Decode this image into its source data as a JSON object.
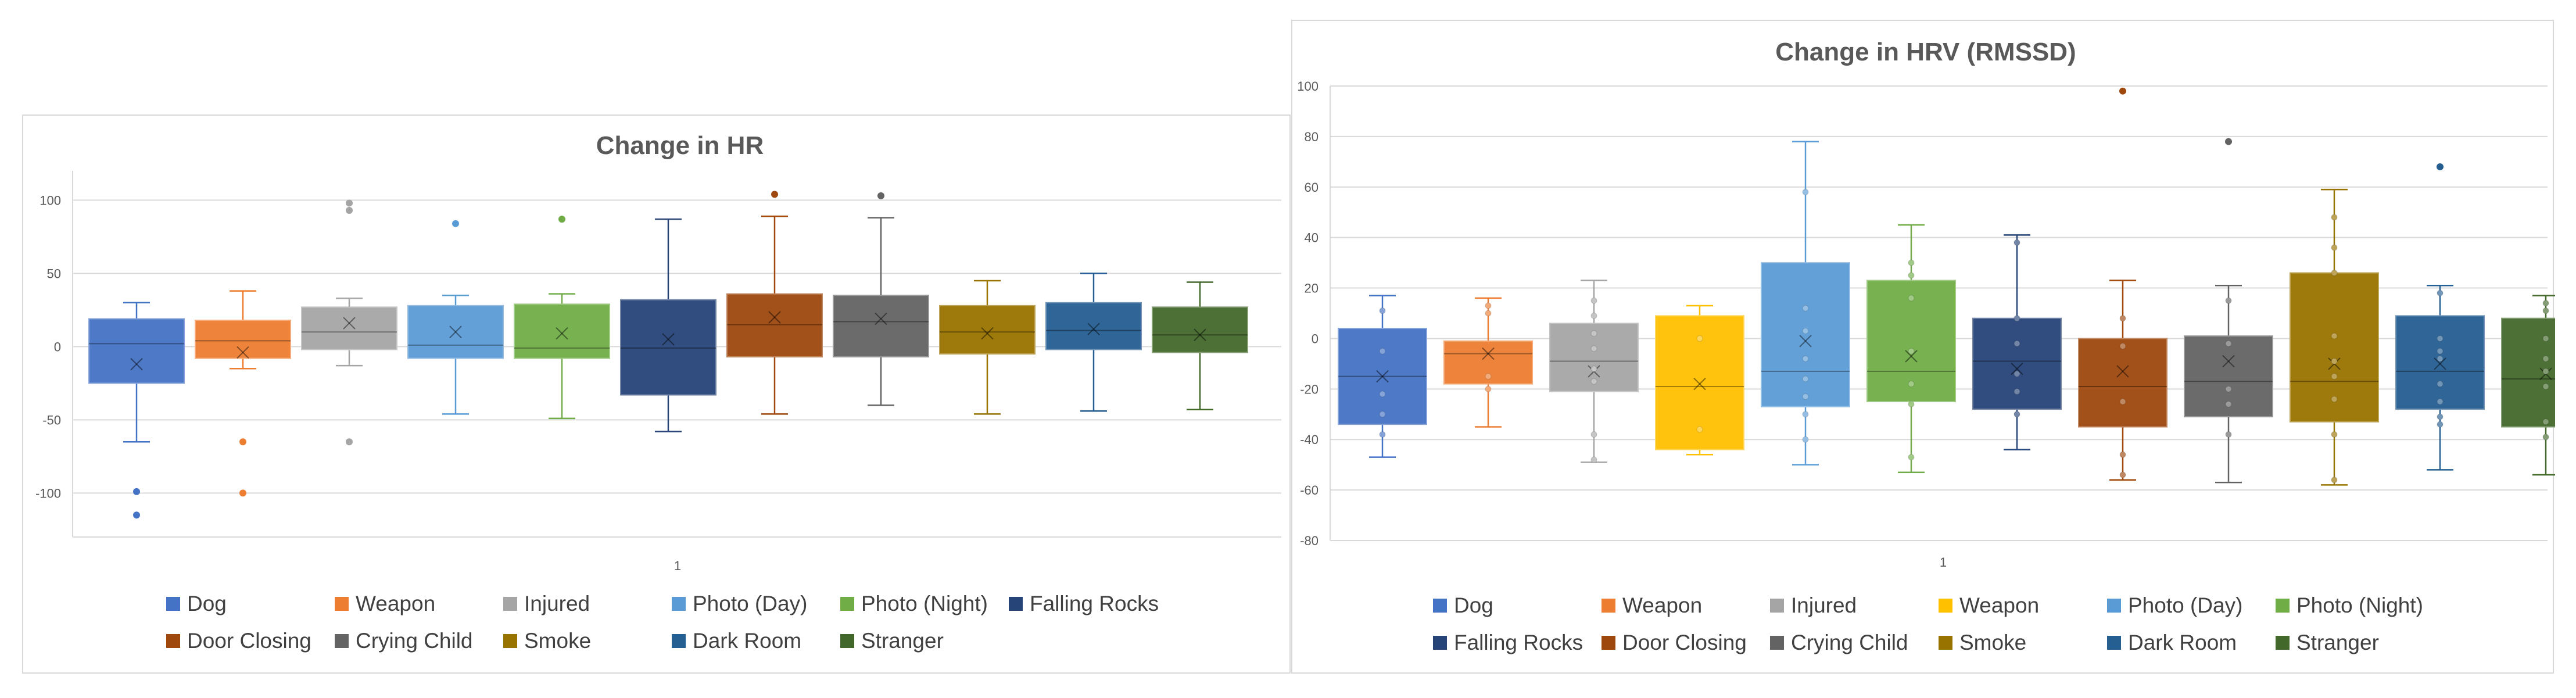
{
  "chart_data": [
    {
      "type": "box",
      "title": "Change in HR",
      "x_category": "1",
      "ylim": [
        -130,
        120
      ],
      "yticks": [
        -100,
        -50,
        0,
        50,
        100
      ],
      "grid": true,
      "legend_position": "bottom",
      "series": [
        {
          "name": "Dog",
          "color": "#4472C4",
          "min": -65,
          "q1": -25,
          "median": 2,
          "q3": 19,
          "max": 30,
          "mean": -12,
          "outliers": [
            -99,
            -115
          ]
        },
        {
          "name": "Weapon",
          "color": "#ED7D31",
          "min": -15,
          "q1": -8,
          "median": 4,
          "q3": 18,
          "max": 38,
          "mean": -4,
          "outliers": [
            -65,
            -100
          ]
        },
        {
          "name": "Injured",
          "color": "#A5A5A5",
          "min": -13,
          "q1": -2,
          "median": 10,
          "q3": 27,
          "max": 33,
          "mean": 16,
          "outliers": [
            98,
            93,
            -65
          ]
        },
        {
          "name": "Photo (Day)",
          "color": "#5B9BD5",
          "min": -46,
          "q1": -8,
          "median": 1,
          "q3": 28,
          "max": 35,
          "mean": 10,
          "outliers": [
            84
          ]
        },
        {
          "name": "Photo (Night)",
          "color": "#70AD47",
          "min": -49,
          "q1": -8,
          "median": -1,
          "q3": 29,
          "max": 36,
          "mean": 9,
          "outliers": [
            87
          ]
        },
        {
          "name": "Falling Rocks",
          "color": "#264478",
          "min": -58,
          "q1": -33,
          "median": -1,
          "q3": 32,
          "max": 87,
          "mean": 5,
          "outliers": []
        },
        {
          "name": "Door Closing",
          "color": "#9E480E",
          "min": -46,
          "q1": -7,
          "median": 15,
          "q3": 36,
          "max": 89,
          "mean": 20,
          "outliers": [
            104
          ]
        },
        {
          "name": "Crying Child",
          "color": "#636363",
          "min": -40,
          "q1": -7,
          "median": 17,
          "q3": 35,
          "max": 88,
          "mean": 19,
          "outliers": [
            103
          ]
        },
        {
          "name": "Smoke",
          "color": "#997300",
          "min": -46,
          "q1": -5,
          "median": 10,
          "q3": 28,
          "max": 45,
          "mean": 9,
          "outliers": []
        },
        {
          "name": "Dark Room",
          "color": "#255E91",
          "min": -44,
          "q1": -2,
          "median": 11,
          "q3": 30,
          "max": 50,
          "mean": 12,
          "outliers": []
        },
        {
          "name": "Stranger",
          "color": "#43682B",
          "min": -43,
          "q1": -4,
          "median": 8,
          "q3": 27,
          "max": 44,
          "mean": 8,
          "outliers": []
        }
      ]
    },
    {
      "type": "box",
      "title": "Change in HRV (RMSSD)",
      "x_category": "1",
      "ylim": [
        -80,
        100
      ],
      "yticks": [
        -80,
        -60,
        -40,
        -20,
        0,
        20,
        40,
        60,
        80,
        100
      ],
      "grid": true,
      "legend_position": "bottom",
      "series": [
        {
          "name": "Dog",
          "color": "#4472C4",
          "min": -47,
          "q1": -34,
          "median": -15,
          "q3": 4,
          "max": 17,
          "mean": -15,
          "outliers": [],
          "points": [
            11,
            -5,
            -22,
            -30,
            -38
          ]
        },
        {
          "name": "Weapon",
          "color": "#ED7D31",
          "min": -35,
          "q1": -18,
          "median": -6,
          "q3": -1,
          "max": 16,
          "mean": -6,
          "outliers": [],
          "points": [
            13,
            10,
            -15,
            -20
          ]
        },
        {
          "name": "Injured",
          "color": "#A5A5A5",
          "min": -49,
          "q1": -21,
          "median": -9,
          "q3": 6,
          "max": 23,
          "mean": -13,
          "outliers": [],
          "points": [
            15,
            9,
            2,
            -4,
            -12,
            -17,
            -38,
            -48
          ]
        },
        {
          "name": "Weapon",
          "color": "#FFC000",
          "min": -46,
          "q1": -44,
          "median": -19,
          "q3": 9,
          "max": 13,
          "mean": -18,
          "outliers": [],
          "points": [
            0,
            -36
          ]
        },
        {
          "name": "Photo (Day)",
          "color": "#5B9BD5",
          "min": -50,
          "q1": -27,
          "median": -13,
          "q3": 30,
          "max": 78,
          "mean": -1,
          "outliers": [],
          "points": [
            58,
            12,
            3,
            -8,
            -16,
            -23,
            -30,
            -40
          ]
        },
        {
          "name": "Photo (Night)",
          "color": "#70AD47",
          "min": -53,
          "q1": -25,
          "median": -13,
          "q3": 23,
          "max": 45,
          "mean": -7,
          "outliers": [],
          "points": [
            30,
            25,
            16,
            -5,
            -18,
            -26,
            -47
          ]
        },
        {
          "name": "Falling Rocks",
          "color": "#264478",
          "min": -44,
          "q1": -28,
          "median": -9,
          "q3": 8,
          "max": 41,
          "mean": -12,
          "outliers": [],
          "points": [
            38,
            8,
            -2,
            -14,
            -21,
            -30
          ]
        },
        {
          "name": "Door Closing",
          "color": "#9E480E",
          "min": -56,
          "q1": -35,
          "median": -19,
          "q3": 0,
          "max": 23,
          "mean": -13,
          "outliers": [
            98
          ],
          "points": [
            8,
            -3,
            -25,
            -46,
            -54
          ]
        },
        {
          "name": "Crying Child",
          "color": "#636363",
          "min": -57,
          "q1": -31,
          "median": -17,
          "q3": 1,
          "max": 21,
          "mean": -9,
          "outliers": [
            78
          ],
          "points": [
            15,
            -2,
            -20,
            -26,
            -38
          ]
        },
        {
          "name": "Smoke",
          "color": "#997300",
          "min": -58,
          "q1": -33,
          "median": -17,
          "q3": 26,
          "max": 59,
          "mean": -10,
          "outliers": [],
          "points": [
            48,
            36,
            26,
            1,
            -9,
            -15,
            -24,
            -38,
            -56
          ]
        },
        {
          "name": "Dark Room",
          "color": "#255E91",
          "min": -52,
          "q1": -28,
          "median": -13,
          "q3": 9,
          "max": 21,
          "mean": -10,
          "outliers": [
            68
          ],
          "points": [
            18,
            0,
            -5,
            -8,
            -18,
            -25,
            -31,
            -34
          ]
        },
        {
          "name": "Stranger",
          "color": "#43682B",
          "min": -54,
          "q1": -35,
          "median": -16,
          "q3": 8,
          "max": 17,
          "mean": -14,
          "outliers": [],
          "points": [
            14,
            11,
            0,
            -8,
            -13,
            -19,
            -33,
            -39
          ]
        }
      ]
    }
  ]
}
